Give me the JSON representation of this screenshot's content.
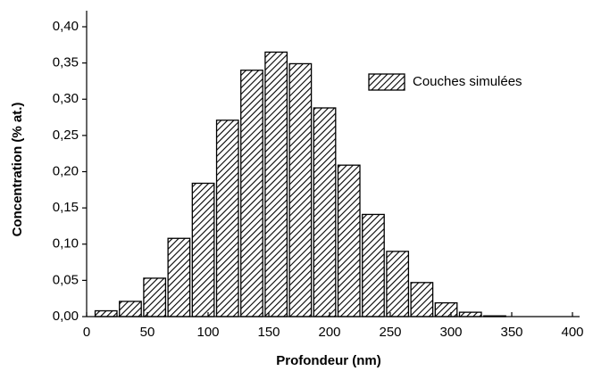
{
  "chart_data": {
    "type": "bar",
    "x_label": "Profondeur (nm)",
    "y_label": "Concentration (% at.)",
    "x": [
      16,
      36,
      56,
      76,
      96,
      116,
      136,
      156,
      176,
      196,
      216,
      236,
      256,
      276,
      296,
      316,
      336
    ],
    "bar_width": 18,
    "series": [
      {
        "name": "Couches simulées",
        "color": "#000000",
        "values": [
          0.008,
          0.021,
          0.053,
          0.108,
          0.184,
          0.271,
          0.34,
          0.365,
          0.349,
          0.288,
          0.209,
          0.141,
          0.09,
          0.047,
          0.019,
          0.006,
          0.001
        ]
      }
    ],
    "xlim": [
      0,
      400
    ],
    "xticks": [
      0,
      50,
      100,
      150,
      200,
      250,
      300,
      350,
      400
    ],
    "ylim": [
      0,
      0.4
    ],
    "yticks": [
      {
        "value": 0,
        "label": "0,00"
      },
      {
        "value": 0.05,
        "label": "0,05"
      },
      {
        "value": 0.1,
        "label": "0,10"
      },
      {
        "value": 0.15,
        "label": "0,15"
      },
      {
        "value": 0.2,
        "label": "0,20"
      },
      {
        "value": 0.25,
        "label": "0,25"
      },
      {
        "value": 0.3,
        "label": "0,30"
      },
      {
        "value": 0.35,
        "label": "0,35"
      },
      {
        "value": 0.4,
        "label": "0,40"
      }
    ],
    "legend": "top-right"
  }
}
